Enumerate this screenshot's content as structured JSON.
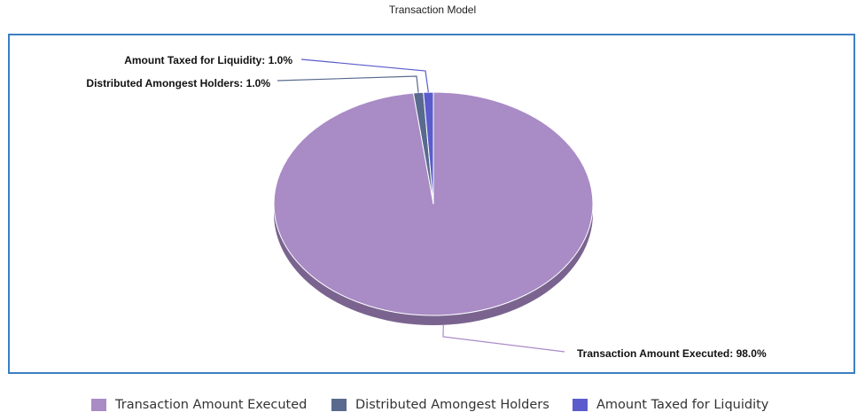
{
  "chart_data": {
    "type": "pie",
    "title": "Transaction Model",
    "slices": [
      {
        "name": "Transaction Amount Executed",
        "value": 98.0,
        "label": "Transaction Amount Executed: 98.0%",
        "color": "#a98bc6"
      },
      {
        "name": "Distributed Amongest Holders",
        "value": 1.0,
        "label": "Distributed Amongest Holders: 1.0%",
        "color": "#596a8e"
      },
      {
        "name": "Amount Taxed for Liquidity",
        "value": 1.0,
        "label": "Amount Taxed for Liquidity: 1.0%",
        "color": "#5b5ccc"
      }
    ],
    "legend_position": "bottom",
    "three_d": true
  },
  "colors": {
    "frame": "#3c7fc3"
  }
}
